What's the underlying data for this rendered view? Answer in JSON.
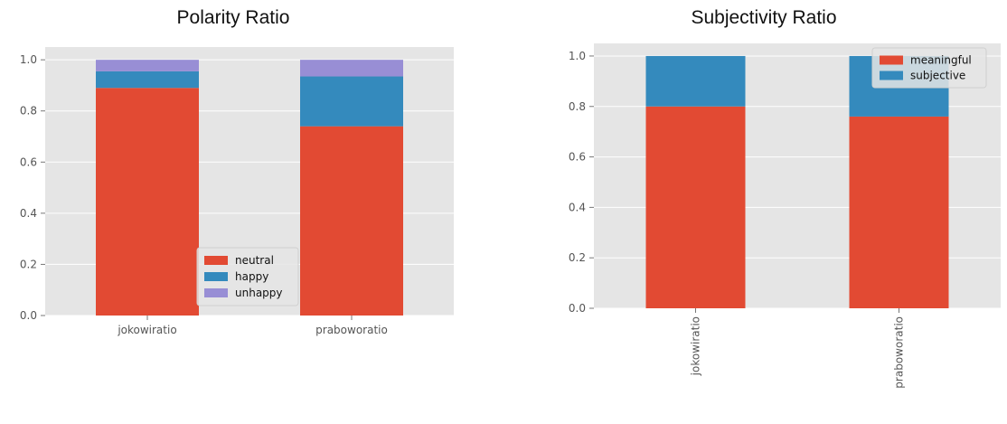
{
  "chart_data": [
    {
      "type": "bar",
      "stacked": true,
      "title": "Polarity Ratio",
      "categories": [
        "jokowiratio",
        "praboworatio"
      ],
      "series": [
        {
          "name": "neutral",
          "values": [
            0.89,
            0.74
          ],
          "color": "#E24A33"
        },
        {
          "name": "happy",
          "values": [
            0.065,
            0.195
          ],
          "color": "#348ABD"
        },
        {
          "name": "unhappy",
          "values": [
            0.045,
            0.065
          ],
          "color": "#988ED5"
        }
      ],
      "ylim": [
        0,
        1.05
      ],
      "yticks": [
        "0.0",
        "0.2",
        "0.4",
        "0.6",
        "0.8",
        "1.0"
      ],
      "xtick_rotation": 0,
      "grid": true,
      "legend_position": "lower-right"
    },
    {
      "type": "bar",
      "stacked": true,
      "title": "Subjectivity Ratio",
      "categories": [
        "jokowiratio",
        "praboworatio"
      ],
      "series": [
        {
          "name": "meaningful",
          "values": [
            0.8,
            0.76
          ],
          "color": "#E24A33"
        },
        {
          "name": "subjective",
          "values": [
            0.2,
            0.24
          ],
          "color": "#348ABD"
        }
      ],
      "ylim": [
        0,
        1.05
      ],
      "yticks": [
        "0.0",
        "0.2",
        "0.4",
        "0.6",
        "0.8",
        "1.0"
      ],
      "xtick_rotation": 90,
      "grid": true,
      "legend_position": "upper-right"
    }
  ]
}
